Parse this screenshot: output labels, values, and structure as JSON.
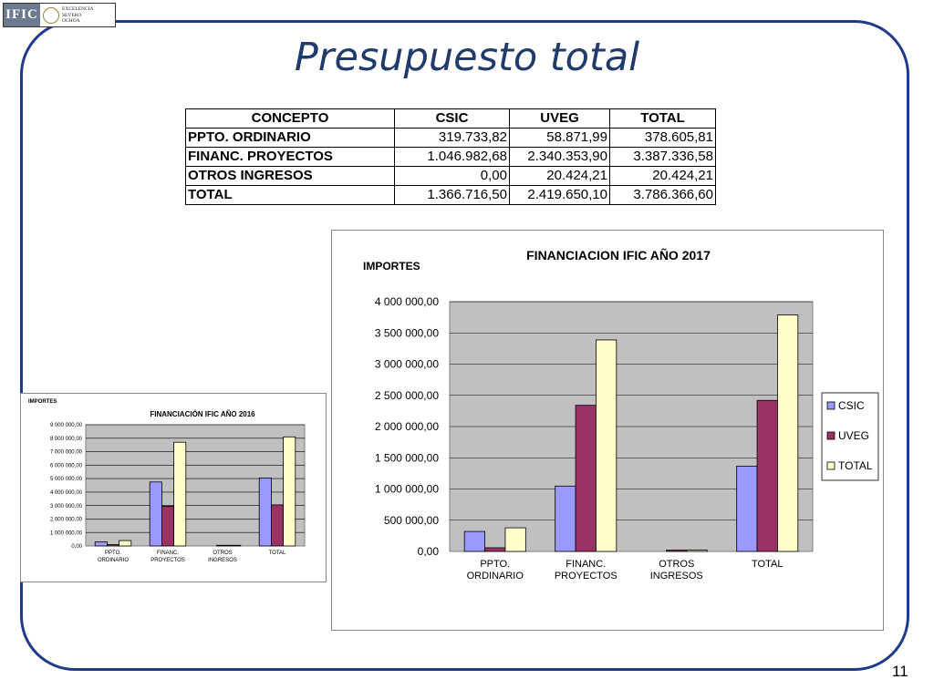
{
  "logo": {
    "mark": "IFIC",
    "text_lines": [
      "EXCELENCIA",
      "SEVERO",
      "OCHOA"
    ]
  },
  "slide": {
    "title": "Presupuesto total",
    "page_number": "11"
  },
  "table": {
    "headers": [
      "CONCEPTO",
      "CSIC",
      "UVEG",
      "TOTAL"
    ],
    "rows": [
      [
        "PPTO. ORDINARIO",
        "319.733,82",
        "58.871,99",
        "378.605,81"
      ],
      [
        "FINANC. PROYECTOS",
        "1.046.982,68",
        "2.340.353,90",
        "3.387.336,58"
      ],
      [
        "OTROS INGRESOS",
        "0,00",
        "20.424,21",
        "20.424,21"
      ],
      [
        "TOTAL",
        "1.366.716,50",
        "2.419.650,10",
        "3.786.366,60"
      ]
    ]
  },
  "colors": {
    "csic": "#9999ff",
    "uveg": "#993366",
    "total": "#ffffcc",
    "plot_bg": "#c0c0c0",
    "frame": "#1f3a8a",
    "title": "#1f3a6b"
  },
  "chart_data": [
    {
      "type": "bar",
      "title": "FINANCIACION IFIC AÑO 2017",
      "ylabel": "IMPORTES",
      "xlabel": "",
      "categories": [
        [
          "PPTO.",
          "ORDINARIO"
        ],
        [
          "FINANC.",
          "PROYECTOS"
        ],
        [
          "OTROS",
          "INGRESOS"
        ],
        [
          "TOTAL"
        ]
      ],
      "series": [
        {
          "name": "CSIC",
          "values": [
            319733.82,
            1046982.68,
            0,
            1366716.5
          ]
        },
        {
          "name": "UVEG",
          "values": [
            58871.99,
            2340353.9,
            20424.21,
            2419650.1
          ]
        },
        {
          "name": "TOTAL",
          "values": [
            378605.81,
            3387336.58,
            20424.21,
            3786366.6
          ]
        }
      ],
      "ylim": [
        0,
        4000000
      ],
      "yticks": [
        "0,00",
        "500 000,00",
        "1 000 000,00",
        "1 500 000,00",
        "2 000 000,00",
        "2 500 000,00",
        "3 000 000,00",
        "3 500 000,00",
        "4 000 000,00"
      ],
      "grid": true,
      "legend": "right"
    },
    {
      "type": "bar",
      "title": "FINANCIACIÓN IFIC AÑO 2016",
      "ylabel": "IMPORTES",
      "xlabel": "",
      "categories": [
        [
          "PPTO.",
          "ORDINARIO"
        ],
        [
          "FINANC.",
          "PROYECTOS"
        ],
        [
          "OTROS",
          "INGRESOS"
        ],
        [
          "TOTAL"
        ]
      ],
      "series": [
        {
          "name": "CSIC",
          "values": [
            300000,
            4750000,
            0,
            5050000
          ]
        },
        {
          "name": "UVEG",
          "values": [
            100000,
            2950000,
            50000,
            3050000
          ]
        },
        {
          "name": "TOTAL",
          "values": [
            400000,
            7700000,
            50000,
            8100000
          ]
        }
      ],
      "ylim": [
        0,
        9000000
      ],
      "yticks": [
        "0,00",
        "1 000 000,00",
        "2 000 000,00",
        "3 000 000,00",
        "4 000 000,00",
        "5 000 000,00",
        "6 000 000,00",
        "7 000 000,00",
        "8 000 000,00",
        "9 000 000,00"
      ],
      "grid": true,
      "legend": "none"
    }
  ]
}
